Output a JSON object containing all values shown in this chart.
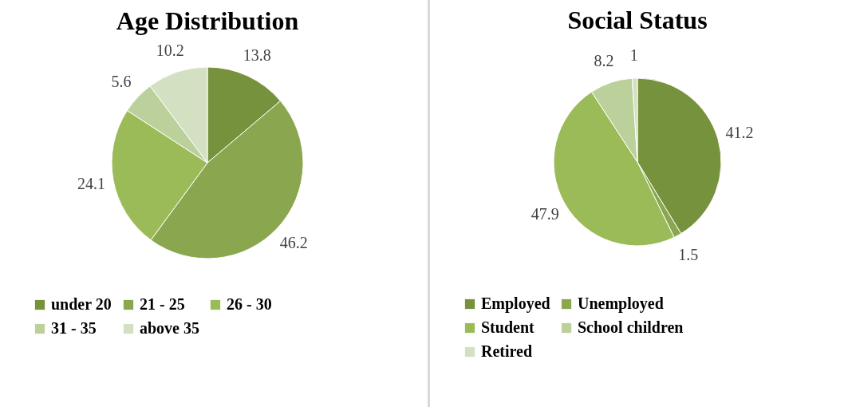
{
  "chart_data": [
    {
      "type": "pie",
      "title": "Age Distribution",
      "categories": [
        "under 20",
        "21 - 25",
        "26 - 30",
        "31 - 35",
        "above 35"
      ],
      "values": [
        13.8,
        46.2,
        24.1,
        5.6,
        10.2
      ],
      "colors": [
        "#76923c",
        "#8aa64f",
        "#9bbb59",
        "#bbd09a",
        "#d3e0c1"
      ],
      "data_labels": true,
      "legend": "bottom"
    },
    {
      "type": "pie",
      "title": "Social Status",
      "categories": [
        "Employed",
        "Unemployed",
        "Student",
        "School children",
        "Retired"
      ],
      "values": [
        41.2,
        1.5,
        47.9,
        8.2,
        1
      ],
      "colors": [
        "#76923c",
        "#8aa64f",
        "#9bbb59",
        "#bbd09a",
        "#d3e0c1"
      ],
      "data_labels": true,
      "legend": "bottom"
    }
  ]
}
